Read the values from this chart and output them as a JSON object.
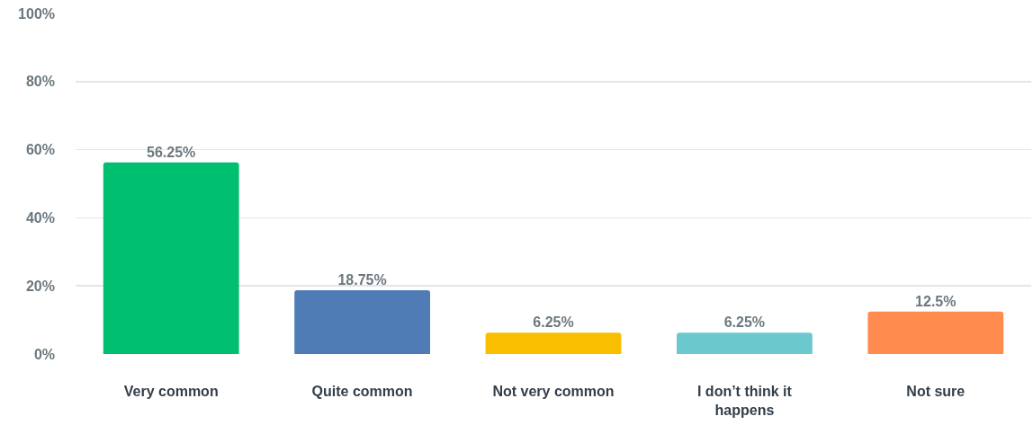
{
  "chart_data": {
    "type": "bar",
    "categories": [
      "Very common",
      "Quite common",
      "Not very common",
      "I don’t think it happens",
      "Not sure"
    ],
    "values": [
      56.25,
      18.75,
      6.25,
      6.25,
      12.5
    ],
    "colors": [
      "#00bf6f",
      "#507cb6",
      "#f9be00",
      "#6bc8cd",
      "#ff8b4f"
    ],
    "value_labels": [
      "56.25%",
      "18.75%",
      "6.25%",
      "6.25%",
      "12.5%"
    ],
    "ylim": [
      0,
      100
    ],
    "yticks": [
      {
        "value": 0,
        "label": "0%"
      },
      {
        "value": 20,
        "label": "20%"
      },
      {
        "value": 40,
        "label": "40%"
      },
      {
        "value": 60,
        "label": "60%"
      },
      {
        "value": 80,
        "label": "80%"
      },
      {
        "value": 100,
        "label": "100%"
      }
    ],
    "grid": "y",
    "legend": false
  }
}
